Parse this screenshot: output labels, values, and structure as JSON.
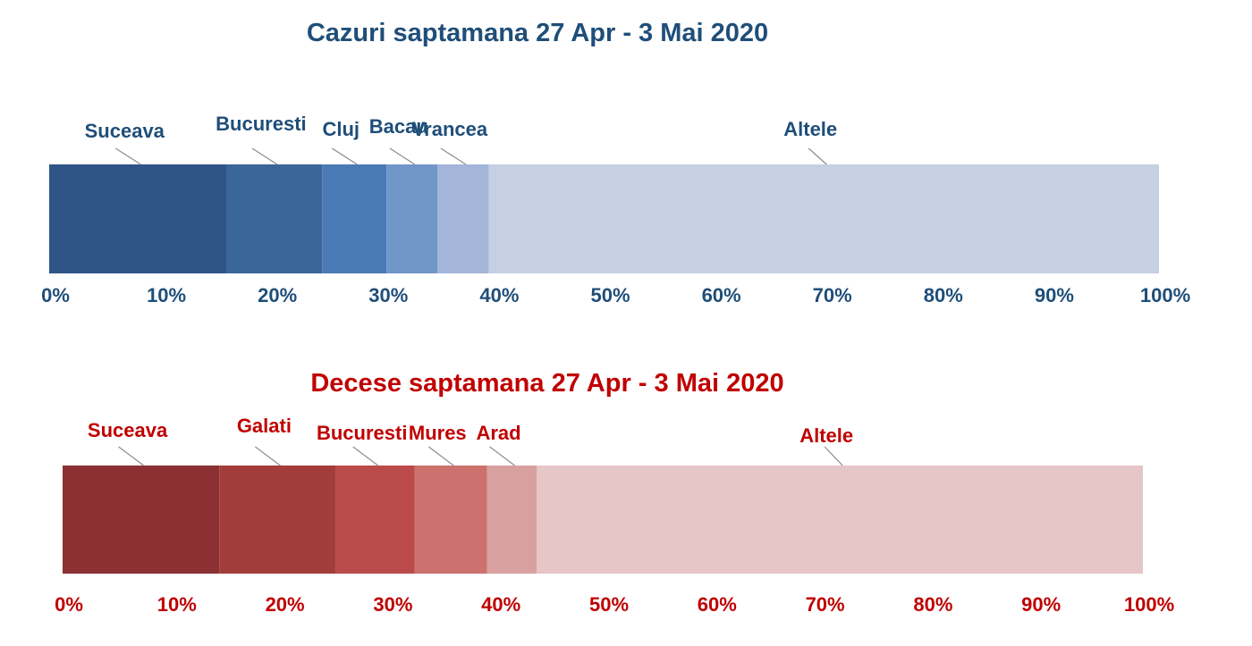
{
  "chart_data": [
    {
      "type": "bar",
      "orientation": "horizontal-stacked-100",
      "title": "Cazuri saptamana 27 Apr - 3 Mai 2020",
      "text_color": "#1F4E79",
      "categories": [
        "Suceava",
        "Bucuresti",
        "Cluj",
        "Bacau",
        "Vrancea",
        "Altele"
      ],
      "values": [
        16,
        8.6,
        5.8,
        4.6,
        4.6,
        60.4
      ],
      "colors": [
        "#2F5587",
        "#3A6699",
        "#4A7AB6",
        "#7196C8",
        "#A3B6D9",
        "#C6D0E4"
      ],
      "xlim": [
        0,
        100
      ],
      "ticks": [
        "0%",
        "10%",
        "20%",
        "30%",
        "40%",
        "50%",
        "60%",
        "70%",
        "80%",
        "90%",
        "100%"
      ],
      "grid": false,
      "legend": "none"
    },
    {
      "type": "bar",
      "orientation": "horizontal-stacked-100",
      "title": "Decese saptamana 27 Apr - 3 Mai 2020",
      "text_color": "#C00000",
      "categories": [
        "Suceava",
        "Galati",
        "Bucuresti",
        "Mures",
        "Arad",
        "Altele"
      ],
      "values": [
        14.5,
        10.8,
        7.3,
        6.7,
        4.6,
        56.1
      ],
      "colors": [
        "#8B3133",
        "#A33D3C",
        "#BA4B4A",
        "#CC716E",
        "#D9A0A0",
        "#E6C6C7"
      ],
      "xlim": [
        0,
        100
      ],
      "ticks": [
        "0%",
        "10%",
        "20%",
        "30%",
        "40%",
        "50%",
        "60%",
        "70%",
        "80%",
        "90%",
        "100%"
      ],
      "grid": false,
      "legend": "none"
    }
  ]
}
